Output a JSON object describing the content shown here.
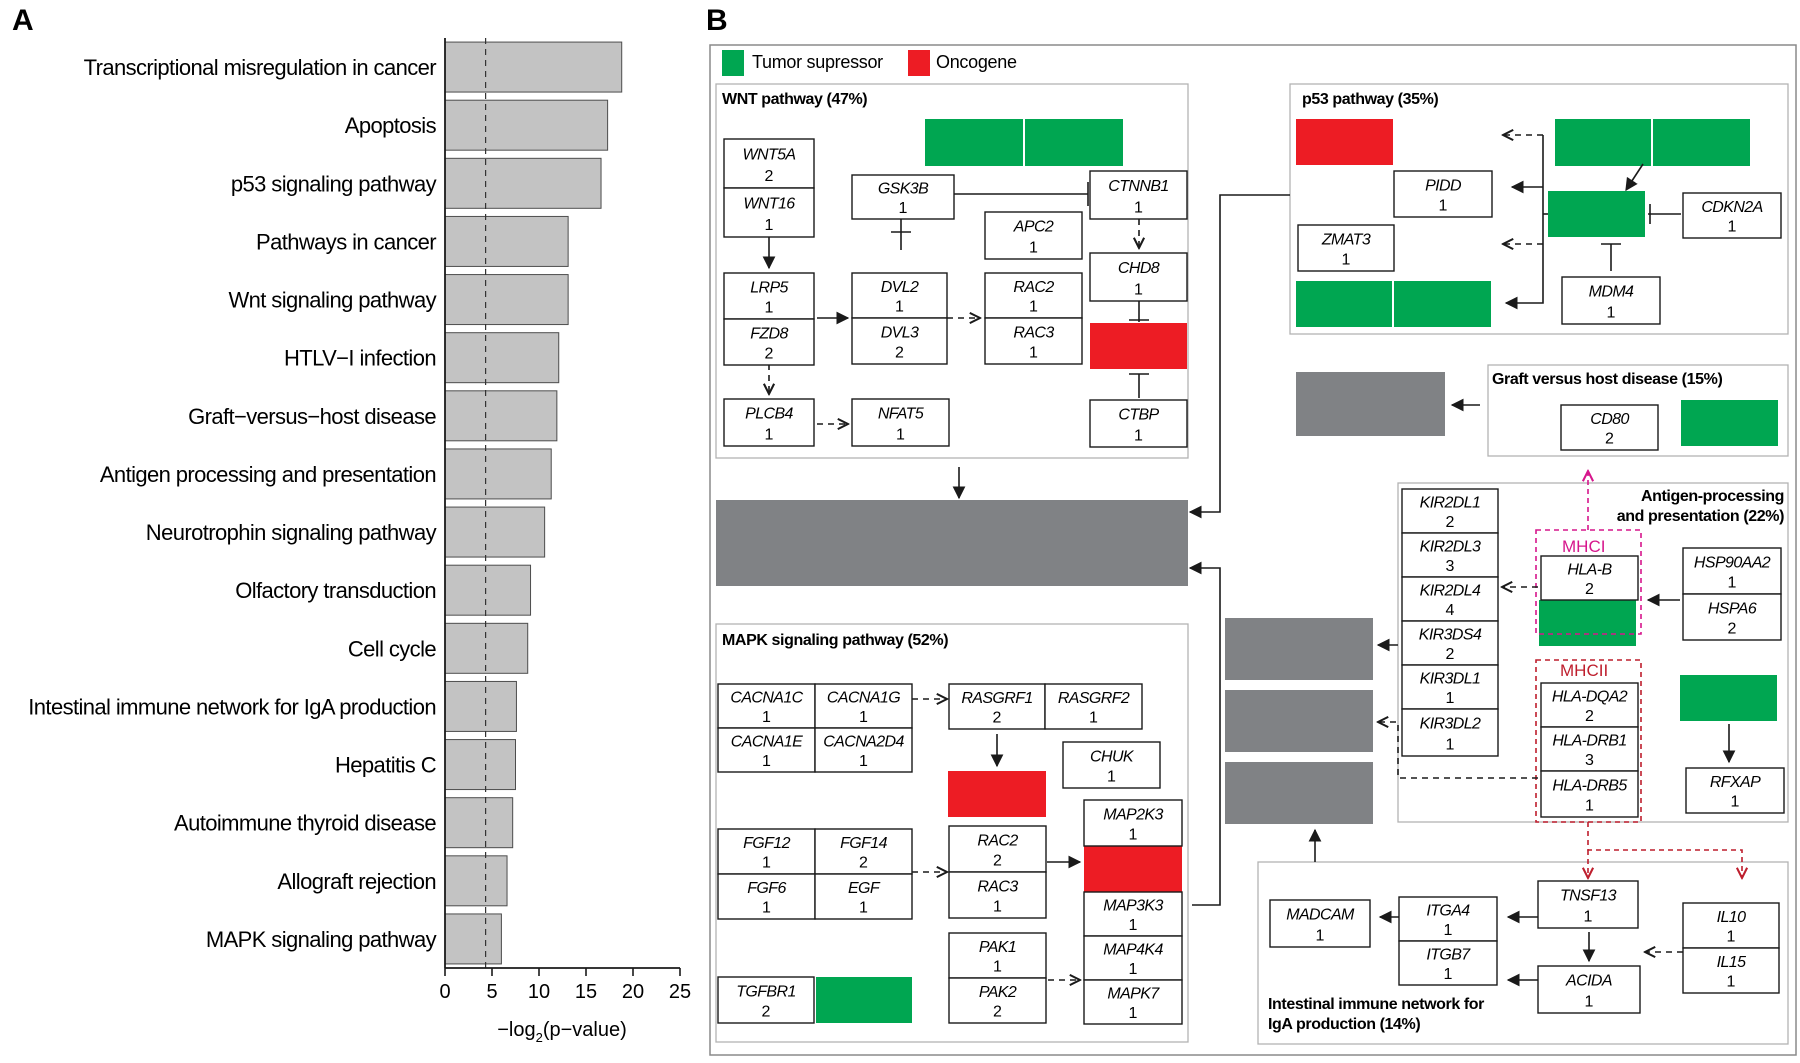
{
  "panel_a": {
    "letter": "A",
    "chart_data": {
      "type": "bar",
      "orientation": "horizontal",
      "categories": [
        "Transcriptional misregulation in cancer",
        "Apoptosis",
        "p53 signaling pathway",
        "Pathways in cancer",
        "Wnt signaling pathway",
        "HTLV−I infection",
        "Graft−versus−host disease",
        "Antigen processing and presentation",
        "Neurotrophin signaling pathway",
        "Olfactory transduction",
        "Cell cycle",
        "Intestinal immune network for IgA production",
        "Hepatitis C",
        "Autoimmune thyroid disease",
        "Allograft rejection",
        "MAPK signaling pathway"
      ],
      "values": [
        18.8,
        17.3,
        16.6,
        13.1,
        13.1,
        12.1,
        11.9,
        11.3,
        10.6,
        9.1,
        8.8,
        7.6,
        7.5,
        7.2,
        6.6,
        6.0
      ],
      "xlim": [
        0,
        25
      ],
      "xticks": [
        0,
        5,
        10,
        15,
        20,
        25
      ],
      "threshold": 4.32,
      "xlabel_prefix": "−log",
      "xlabel_sub": "2",
      "xlabel_suffix": "(p−value)",
      "bar_color": "#c3c3c3",
      "grid": false
    }
  },
  "panel_b": {
    "letter": "B",
    "legend": {
      "tumor_suppressor": "Tumor supressor",
      "oncogene": "Oncogene"
    },
    "colors": {
      "tumor_suppressor": "#00a651",
      "oncogene": "#ed1c24",
      "output": "#808285",
      "mhc1": "#d6168c",
      "mhc2": "#be1e2d"
    },
    "pathways": {
      "wnt": "WNT pathway (47%)",
      "p53": "p53 pathway (35%)",
      "gvhd": "Graft versus host disease (15%)",
      "antigen_1": "Antigen-processing",
      "antigen_2": "and presentation (22%)",
      "mapk": "MAPK signaling pathway (52%)",
      "iga_1": "Intestinal immune network for",
      "iga_2": "IgA production (14%)"
    },
    "mhc_labels": {
      "mhc1": "MHCI",
      "mhc2": "MHCII"
    },
    "genes": [
      {
        "id": "wnt5a",
        "name": "WNT5A",
        "count": "2"
      },
      {
        "id": "wnt16",
        "name": "WNT16",
        "count": "1"
      },
      {
        "id": "gsk3b",
        "name": "GSK3B",
        "count": "1"
      },
      {
        "id": "ctnnb1",
        "name": "CTNNB1",
        "count": "1"
      },
      {
        "id": "apc2",
        "name": "APC2",
        "count": "1"
      },
      {
        "id": "chd8",
        "name": "CHD8",
        "count": "1"
      },
      {
        "id": "lrp5",
        "name": "LRP5",
        "count": "1"
      },
      {
        "id": "fzd8",
        "name": "FZD8",
        "count": "2"
      },
      {
        "id": "dvl2",
        "name": "DVL2",
        "count": "1"
      },
      {
        "id": "dvl3",
        "name": "DVL3",
        "count": "2"
      },
      {
        "id": "rac2w",
        "name": "RAC2",
        "count": "1"
      },
      {
        "id": "rac3w",
        "name": "RAC3",
        "count": "1"
      },
      {
        "id": "plcb4",
        "name": "PLCB4",
        "count": "1"
      },
      {
        "id": "nfat5",
        "name": "NFAT5",
        "count": "1"
      },
      {
        "id": "ctbp",
        "name": "CTBP",
        "count": "1"
      },
      {
        "id": "pidd",
        "name": "PIDD",
        "count": "1"
      },
      {
        "id": "zmat3",
        "name": "ZMAT3",
        "count": "1"
      },
      {
        "id": "cdkn2a",
        "name": "CDKN2A",
        "count": "1"
      },
      {
        "id": "mdm4",
        "name": "MDM4",
        "count": "1"
      },
      {
        "id": "cd80",
        "name": "CD80",
        "count": "2"
      },
      {
        "id": "kir2dl1",
        "name": "KIR2DL1",
        "count": "2"
      },
      {
        "id": "kir2dl3",
        "name": "KIR2DL3",
        "count": "3"
      },
      {
        "id": "kir2dl4",
        "name": "KIR2DL4",
        "count": "4"
      },
      {
        "id": "kir3ds4",
        "name": "KIR3DS4",
        "count": "2"
      },
      {
        "id": "kir3dl1",
        "name": "KIR3DL1",
        "count": "1"
      },
      {
        "id": "kir3dl2",
        "name": "KIR3DL2",
        "count": "1"
      },
      {
        "id": "hlab",
        "name": "HLA-B",
        "count": "2"
      },
      {
        "id": "hsp90aa2",
        "name": "HSP90AA2",
        "count": "1"
      },
      {
        "id": "hspa6",
        "name": "HSPA6",
        "count": "2"
      },
      {
        "id": "hladqa2",
        "name": "HLA-DQA2",
        "count": "2"
      },
      {
        "id": "hladrb1",
        "name": "HLA-DRB1",
        "count": "3"
      },
      {
        "id": "hladrb5",
        "name": "HLA-DRB5",
        "count": "1"
      },
      {
        "id": "rfxap",
        "name": "RFXAP",
        "count": "1"
      },
      {
        "id": "cacna1c",
        "name": "CACNA1C",
        "count": "1"
      },
      {
        "id": "cacna1g",
        "name": "CACNA1G",
        "count": "1"
      },
      {
        "id": "cacna1e",
        "name": "CACNA1E",
        "count": "1"
      },
      {
        "id": "cacna2d4",
        "name": "CACNA2D4",
        "count": "1"
      },
      {
        "id": "rasgrf1",
        "name": "RASGRF1",
        "count": "2"
      },
      {
        "id": "rasgrf2",
        "name": "RASGRF2",
        "count": "1"
      },
      {
        "id": "chuk",
        "name": "CHUK",
        "count": "1"
      },
      {
        "id": "fgf12",
        "name": "FGF12",
        "count": "1"
      },
      {
        "id": "fgf14",
        "name": "FGF14",
        "count": "2"
      },
      {
        "id": "fgf6",
        "name": "FGF6",
        "count": "1"
      },
      {
        "id": "egf",
        "name": "EGF",
        "count": "1"
      },
      {
        "id": "rac2m",
        "name": "RAC2",
        "count": "2"
      },
      {
        "id": "rac3m",
        "name": "RAC3",
        "count": "1"
      },
      {
        "id": "map2k3",
        "name": "MAP2K3",
        "count": "1"
      },
      {
        "id": "map3k3",
        "name": "MAP3K3",
        "count": "1"
      },
      {
        "id": "map4k4",
        "name": "MAP4K4",
        "count": "1"
      },
      {
        "id": "mapk7",
        "name": "MAPK7",
        "count": "1"
      },
      {
        "id": "pak1",
        "name": "PAK1",
        "count": "1"
      },
      {
        "id": "pak2",
        "name": "PAK2",
        "count": "2"
      },
      {
        "id": "tgfbr1",
        "name": "TGFBR1",
        "count": "2"
      },
      {
        "id": "madcam",
        "name": "MADCAM",
        "count": "1"
      },
      {
        "id": "itga4",
        "name": "ITGA4",
        "count": "1"
      },
      {
        "id": "itgb7",
        "name": "ITGB7",
        "count": "1"
      },
      {
        "id": "tnsf13",
        "name": "TNSF13",
        "count": "1"
      },
      {
        "id": "acida",
        "name": "ACIDA",
        "count": "1"
      },
      {
        "id": "il10",
        "name": "IL10",
        "count": "1"
      },
      {
        "id": "il15",
        "name": "IL15",
        "count": "1"
      }
    ]
  }
}
